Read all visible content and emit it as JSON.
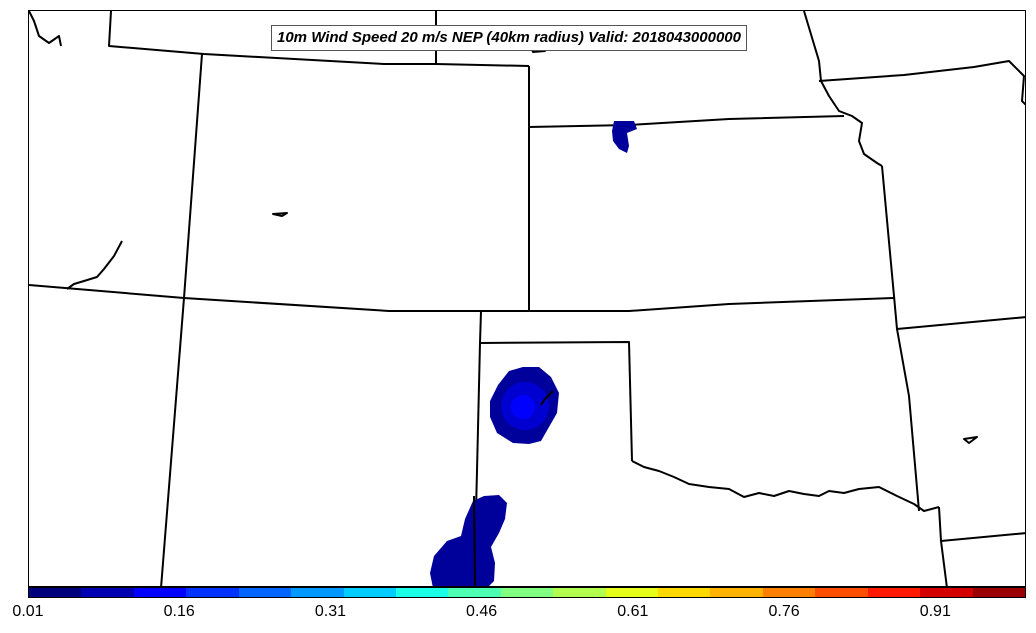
{
  "title": "10m Wind Speed 20 m/s NEP (40km radius) Valid: 2018043000000",
  "colorbar": {
    "colors": [
      "#00007f",
      "#0000b2",
      "#0000ff",
      "#0033ff",
      "#0066ff",
      "#0099ff",
      "#00ccff",
      "#1affe5",
      "#4dffb2",
      "#80ff80",
      "#b2ff4d",
      "#e5ff1a",
      "#ffd900",
      "#ffb300",
      "#ff8000",
      "#ff4d00",
      "#ff1a00",
      "#d40000",
      "#9b0000"
    ],
    "tick_labels": [
      "0.01",
      "0.16",
      "0.31",
      "0.46",
      "0.61",
      "0.76",
      "0.91"
    ],
    "tick_values": [
      0.01,
      0.16,
      0.31,
      0.46,
      0.61,
      0.76,
      0.91
    ],
    "range": [
      0.01,
      1.0
    ]
  },
  "map": {
    "line_color": "#000000",
    "probability_areas": [
      {
        "region": "north-central",
        "probability": 0.05,
        "color": "#00009a"
      },
      {
        "region": "central",
        "probability": 0.16,
        "color": "#0000ff"
      },
      {
        "region": "south",
        "probability": 0.05,
        "color": "#00009a"
      }
    ]
  }
}
